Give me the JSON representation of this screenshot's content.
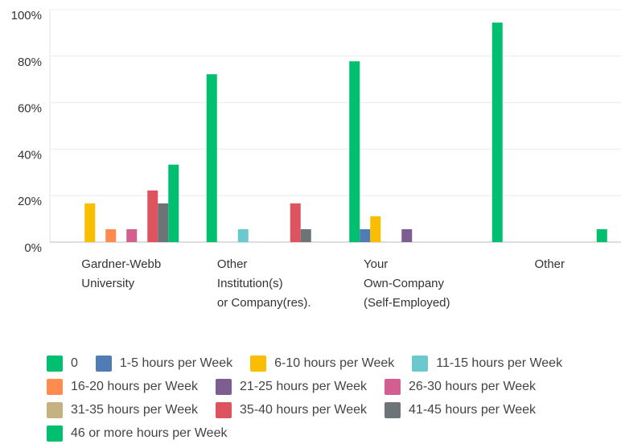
{
  "chart_data": {
    "type": "bar",
    "categories": [
      "Gardner-Webb\nUniversity",
      "Other\nInstitution(s)\nor Company(res).",
      "Your\nOwn-Company\n(Self-Employed)",
      "Other"
    ],
    "series": [
      {
        "name": "0",
        "color": "#00bf6f",
        "values": [
          0,
          72.22,
          77.78,
          94.44
        ]
      },
      {
        "name": "1-5 hours per Week",
        "color": "#507cb6",
        "values": [
          0,
          0,
          5.56,
          0
        ]
      },
      {
        "name": "6-10 hours per Week",
        "color": "#f9be00",
        "values": [
          16.67,
          0,
          11.11,
          0
        ]
      },
      {
        "name": "11-15 hours per Week",
        "color": "#6bc8cd",
        "values": [
          0,
          5.56,
          0,
          0
        ]
      },
      {
        "name": "16-20 hours per Week",
        "color": "#ff8b4f",
        "values": [
          5.56,
          0,
          0,
          0
        ]
      },
      {
        "name": "21-25 hours per Week",
        "color": "#7d5e90",
        "values": [
          0,
          0,
          5.56,
          0
        ]
      },
      {
        "name": "26-30 hours per Week",
        "color": "#d25f90",
        "values": [
          5.56,
          0,
          0,
          0
        ]
      },
      {
        "name": "31-35 hours per Week",
        "color": "#c4b283",
        "values": [
          0,
          0,
          0,
          0
        ]
      },
      {
        "name": "35-40 hours per Week",
        "color": "#dd5360",
        "values": [
          22.22,
          16.67,
          0,
          0
        ]
      },
      {
        "name": "41-45 hours per Week",
        "color": "#6d7478",
        "values": [
          16.67,
          5.56,
          0,
          0
        ]
      },
      {
        "name": "46 or more hours per Week",
        "color": "#00bf6f",
        "values": [
          33.33,
          0,
          0,
          5.56
        ]
      }
    ],
    "ylim": [
      0,
      100
    ],
    "yticks": [
      {
        "value": 0,
        "label": "0%"
      },
      {
        "value": 20,
        "label": "20%"
      },
      {
        "value": 40,
        "label": "40%"
      },
      {
        "value": 60,
        "label": "60%"
      },
      {
        "value": 80,
        "label": "80%"
      },
      {
        "value": 100,
        "label": "100%"
      }
    ],
    "grid": true
  }
}
